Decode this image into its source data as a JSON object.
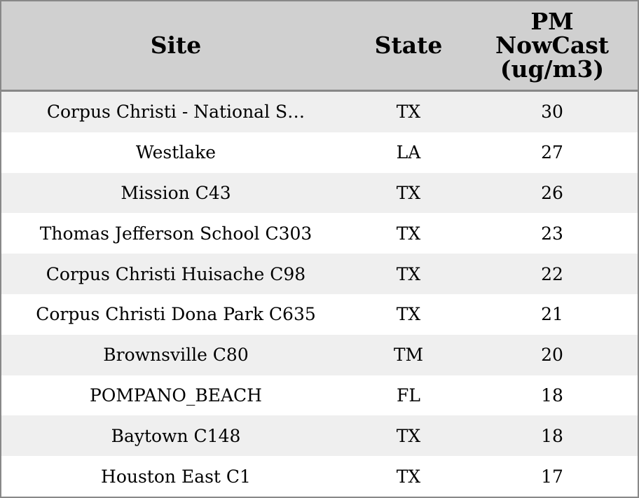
{
  "table": {
    "columns": [
      "Site",
      "State",
      "PM NowCast (ug/m3)"
    ],
    "rows": [
      [
        "Corpus Christi - National S…",
        "TX",
        30
      ],
      [
        "Westlake",
        "LA",
        27
      ],
      [
        "Mission C43",
        "TX",
        26
      ],
      [
        "Thomas Jefferson School C303",
        "TX",
        23
      ],
      [
        "Corpus Christi Huisache C98",
        "TX",
        22
      ],
      [
        "Corpus Christi Dona Park C635",
        "TX",
        21
      ],
      [
        "Brownsville C80",
        "TM",
        20
      ],
      [
        "POMPANO_BEACH",
        "FL",
        18
      ],
      [
        "Baytown C148",
        "TX",
        18
      ],
      [
        "Houston East C1",
        "TX",
        17
      ]
    ]
  }
}
